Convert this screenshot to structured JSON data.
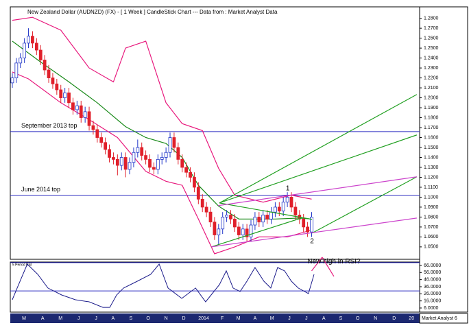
{
  "footer": "Market Analyst 6",
  "chart_data": [
    {
      "type": "candlestick",
      "title": "New Zealand Dollar (AUDNZD) (FX) -  [ 1 Week ]  CandleStick Chart --- Data from : Market Analyst Data",
      "x": [
        0,
        1,
        2,
        3,
        4,
        5,
        6,
        7,
        8,
        9,
        10,
        11,
        12,
        13,
        14,
        15,
        16,
        17,
        18,
        19,
        20,
        21,
        22,
        23,
        24,
        25,
        26,
        27,
        28,
        29,
        30,
        31,
        32,
        33,
        34,
        35,
        36,
        37,
        38,
        39,
        40,
        41,
        42,
        43,
        44,
        45,
        46,
        47,
        48,
        49,
        50,
        51,
        52,
        53,
        54,
        55,
        56,
        57,
        58,
        59,
        60,
        61,
        62,
        63,
        64,
        65,
        66,
        67,
        68,
        69,
        70,
        71,
        72,
        73,
        74
      ],
      "open": [
        1.215,
        1.22,
        1.235,
        1.24,
        1.255,
        1.262,
        1.255,
        1.248,
        1.238,
        1.228,
        1.22,
        1.214,
        1.208,
        1.2,
        1.205,
        1.195,
        1.188,
        1.192,
        1.18,
        1.186,
        1.172,
        1.168,
        1.16,
        1.155,
        1.148,
        1.14,
        1.138,
        1.132,
        1.14,
        1.128,
        1.135,
        1.145,
        1.15,
        1.142,
        1.138,
        1.13,
        1.128,
        1.138,
        1.14,
        1.145,
        1.16,
        1.15,
        1.138,
        1.13,
        1.125,
        1.12,
        1.11,
        1.098,
        1.09,
        1.085,
        1.075,
        1.062,
        1.068,
        1.08,
        1.082,
        1.078,
        1.07,
        1.062,
        1.068,
        1.06,
        1.072,
        1.08,
        1.075,
        1.082,
        1.078,
        1.085,
        1.09,
        1.086,
        1.095,
        1.1,
        1.09,
        1.082,
        1.078,
        1.07,
        1.065
      ],
      "high": [
        1.225,
        1.24,
        1.245,
        1.26,
        1.27,
        1.267,
        1.26,
        1.253,
        1.243,
        1.233,
        1.225,
        1.219,
        1.213,
        1.21,
        1.21,
        1.2,
        1.197,
        1.197,
        1.191,
        1.191,
        1.177,
        1.173,
        1.165,
        1.16,
        1.153,
        1.145,
        1.143,
        1.145,
        1.145,
        1.14,
        1.15,
        1.158,
        1.155,
        1.147,
        1.143,
        1.135,
        1.143,
        1.145,
        1.15,
        1.165,
        1.165,
        1.155,
        1.143,
        1.135,
        1.13,
        1.125,
        1.115,
        1.103,
        1.095,
        1.09,
        1.08,
        1.073,
        1.085,
        1.087,
        1.087,
        1.083,
        1.075,
        1.073,
        1.073,
        1.077,
        1.085,
        1.085,
        1.087,
        1.087,
        1.09,
        1.095,
        1.095,
        1.1,
        1.105,
        1.105,
        1.095,
        1.087,
        1.083,
        1.075,
        1.085
      ],
      "low": [
        1.21,
        1.215,
        1.23,
        1.235,
        1.25,
        1.25,
        1.243,
        1.233,
        1.223,
        1.215,
        1.209,
        1.203,
        1.195,
        1.195,
        1.19,
        1.183,
        1.183,
        1.175,
        1.175,
        1.167,
        1.163,
        1.155,
        1.15,
        1.143,
        1.135,
        1.133,
        1.122,
        1.127,
        1.12,
        1.123,
        1.13,
        1.14,
        1.137,
        1.133,
        1.125,
        1.123,
        1.123,
        1.133,
        1.135,
        1.14,
        1.145,
        1.133,
        1.125,
        1.12,
        1.115,
        1.105,
        1.093,
        1.085,
        1.08,
        1.07,
        1.057,
        1.052,
        1.063,
        1.075,
        1.073,
        1.065,
        1.057,
        1.057,
        1.055,
        1.055,
        1.067,
        1.07,
        1.07,
        1.073,
        1.073,
        1.08,
        1.081,
        1.081,
        1.09,
        1.085,
        1.077,
        1.073,
        1.065,
        1.06,
        1.06
      ],
      "close": [
        1.22,
        1.235,
        1.24,
        1.255,
        1.262,
        1.255,
        1.248,
        1.238,
        1.228,
        1.22,
        1.214,
        1.208,
        1.2,
        1.205,
        1.195,
        1.188,
        1.192,
        1.18,
        1.186,
        1.172,
        1.168,
        1.16,
        1.155,
        1.148,
        1.14,
        1.138,
        1.132,
        1.14,
        1.128,
        1.135,
        1.145,
        1.15,
        1.142,
        1.138,
        1.13,
        1.128,
        1.138,
        1.14,
        1.145,
        1.16,
        1.15,
        1.138,
        1.13,
        1.125,
        1.12,
        1.11,
        1.098,
        1.09,
        1.085,
        1.075,
        1.062,
        1.068,
        1.08,
        1.082,
        1.078,
        1.07,
        1.062,
        1.068,
        1.06,
        1.072,
        1.08,
        1.075,
        1.082,
        1.078,
        1.085,
        1.09,
        1.086,
        1.095,
        1.1,
        1.09,
        1.082,
        1.078,
        1.07,
        1.065,
        1.08
      ],
      "up_color": "#1f35c8",
      "down_color": "#e0202a",
      "overlays": [
        {
          "x": [
            0,
            5,
            12,
            19,
            25,
            28,
            33,
            38,
            42,
            47,
            51,
            55,
            62,
            69,
            74
          ],
          "values": [
            1.278,
            1.281,
            1.268,
            1.23,
            1.216,
            1.25,
            1.257,
            1.195,
            1.174,
            1.167,
            1.129,
            1.102,
            1.095,
            1.102,
            1.098
          ],
          "color": "#e8197d"
        },
        {
          "x": [
            0,
            4,
            12,
            19,
            26,
            33,
            38,
            42,
            46,
            50,
            55,
            61,
            68,
            74
          ],
          "values": [
            1.226,
            1.219,
            1.195,
            1.178,
            1.16,
            1.126,
            1.116,
            1.112,
            1.078,
            1.043,
            1.05,
            1.06,
            1.06,
            1.067
          ],
          "color": "#e8197d"
        },
        {
          "x": [
            0,
            7,
            14,
            21,
            28,
            33,
            38,
            42,
            46,
            51,
            56,
            65,
            71,
            74
          ],
          "values": [
            1.257,
            1.236,
            1.216,
            1.195,
            1.171,
            1.16,
            1.154,
            1.14,
            1.112,
            1.091,
            1.078,
            1.078,
            1.079,
            1.078
          ],
          "color": "#1a8a1a"
        }
      ],
      "levels": [
        {
          "value": 1.166,
          "label": "September 2013 top"
        },
        {
          "value": 1.102,
          "label": "June 2014 top"
        }
      ],
      "level_color": "#2b2bc0",
      "trendlines": [
        {
          "x": [
            51.2,
            100.0
          ],
          "y": [
            1.0942,
            1.2033
          ],
          "color": "#22a022"
        },
        {
          "x": [
            51.2,
            100.0
          ],
          "y": [
            1.0942,
            1.1626
          ],
          "color": "#22a022"
        },
        {
          "x": [
            74.1,
            100.0
          ],
          "y": [
            1.0638,
            1.1205
          ],
          "color": "#22a022"
        },
        {
          "x": [
            51.2,
            74.1
          ],
          "y": [
            1.0942,
            1.0777
          ],
          "color": "#22a022"
        },
        {
          "x": [
            49.2,
            71.5
          ],
          "y": [
            1.05,
            1.079
          ],
          "color": "#22a022"
        },
        {
          "x": [
            50.9,
            100.0
          ],
          "y": [
            1.0915,
            1.1205
          ],
          "color": "#cc44cc"
        },
        {
          "x": [
            49.2,
            100.0
          ],
          "y": [
            1.05,
            1.079
          ],
          "color": "#cc44cc"
        }
      ],
      "annotations": [
        {
          "text": "1",
          "x": 68.1,
          "y": 1.1087
        },
        {
          "text": "2",
          "x": 74.1,
          "y": 1.0556
        }
      ],
      "xlim": [
        -0.5,
        100.7
      ],
      "ylim": [
        1.0375,
        1.2915
      ],
      "yticks": [
        {
          "value": 1.28,
          "label": "1.2800"
        },
        {
          "value": 1.27,
          "label": "1.2700"
        },
        {
          "value": 1.26,
          "label": "1.2600"
        },
        {
          "value": 1.25,
          "label": "1.2500"
        },
        {
          "value": 1.24,
          "label": "1.2400"
        },
        {
          "value": 1.23,
          "label": "1.2300"
        },
        {
          "value": 1.22,
          "label": "1.2200"
        },
        {
          "value": 1.21,
          "label": "1.2100"
        },
        {
          "value": 1.2,
          "label": "1.2000"
        },
        {
          "value": 1.19,
          "label": "1.1900"
        },
        {
          "value": 1.18,
          "label": "1.1800"
        },
        {
          "value": 1.17,
          "label": "1.1700"
        },
        {
          "value": 1.16,
          "label": "1.1600"
        },
        {
          "value": 1.15,
          "label": "1.1500"
        },
        {
          "value": 1.14,
          "label": "1.1400"
        },
        {
          "value": 1.13,
          "label": "1.1300"
        },
        {
          "value": 1.12,
          "label": "1.1200"
        },
        {
          "value": 1.11,
          "label": "1.1100"
        },
        {
          "value": 1.1,
          "label": "1.1000"
        },
        {
          "value": 1.09,
          "label": "1.0900"
        },
        {
          "value": 1.08,
          "label": "1.0800"
        },
        {
          "value": 1.07,
          "label": "1.0700"
        },
        {
          "value": 1.06,
          "label": "1.0600"
        },
        {
          "value": 1.05,
          "label": "1.0500"
        }
      ]
    },
    {
      "type": "line",
      "title": "5 Period RSI",
      "x": [
        0,
        1.2,
        3.7,
        6.3,
        8.8,
        12.2,
        15.6,
        19.0,
        22.4,
        24.1,
        25.8,
        27.5,
        30.9,
        34.2,
        36.3,
        38.5,
        41.9,
        45.3,
        47.8,
        51.2,
        52.9,
        54.6,
        56.3,
        58.0,
        60.0,
        62.2,
        63.9,
        65.6,
        67.3,
        69.0,
        70.7,
        73.2,
        74.6
      ],
      "values": [
        17.6,
        34.1,
        67.9,
        53.4,
        34.1,
        24.4,
        17.6,
        14.7,
        6.9,
        6.9,
        24.4,
        34.1,
        43.7,
        53.4,
        67.9,
        34.1,
        19.5,
        34.1,
        14.7,
        38.9,
        58.3,
        34.1,
        29.2,
        43.7,
        63.1,
        43.7,
        34.1,
        63.1,
        58.3,
        43.7,
        34.1,
        26.3,
        53.4
      ],
      "color": "#1a1a8a",
      "levels": [
        70,
        30
      ],
      "level_color": "#2b2bc0",
      "trendlines": [
        {
          "x": [
            74.0,
            76.6
          ],
          "y": [
            58.3,
            77.6
          ],
          "color": "#e8197d"
        },
        {
          "x": [
            76.6,
            79.5
          ],
          "y": [
            77.6,
            50.5
          ],
          "color": "#e8197d"
        }
      ],
      "annotations": [
        {
          "text": "New high in RSI?",
          "x": 79.5,
          "y": 71.5
        }
      ],
      "xlim": [
        -0.5,
        100.7
      ],
      "ylim": [
        0.2,
        70.8
      ],
      "yticks": [
        {
          "value": 66,
          "label": "66.0000"
        },
        {
          "value": 56,
          "label": "56.0000"
        },
        {
          "value": 46,
          "label": "46.0000"
        },
        {
          "value": 36,
          "label": "36.0000"
        },
        {
          "value": 26,
          "label": "26.0000"
        },
        {
          "value": 16,
          "label": "16.0000"
        },
        {
          "value": 6,
          "label": "6.0000"
        }
      ],
      "xticks": [
        {
          "value": 2.9,
          "label": "M"
        },
        {
          "value": 7.5,
          "label": "A"
        },
        {
          "value": 11.9,
          "label": "M"
        },
        {
          "value": 16.4,
          "label": "J"
        },
        {
          "value": 20.7,
          "label": "J"
        },
        {
          "value": 24.9,
          "label": "A"
        },
        {
          "value": 29.3,
          "label": "S"
        },
        {
          "value": 33.6,
          "label": "O"
        },
        {
          "value": 38.0,
          "label": "N"
        },
        {
          "value": 42.4,
          "label": "D"
        },
        {
          "value": 47.3,
          "label": "2014"
        },
        {
          "value": 51.9,
          "label": "F"
        },
        {
          "value": 55.9,
          "label": "M"
        },
        {
          "value": 60.0,
          "label": "A"
        },
        {
          "value": 64.2,
          "label": "M"
        },
        {
          "value": 68.5,
          "label": "J"
        },
        {
          "value": 72.7,
          "label": "J"
        },
        {
          "value": 77.0,
          "label": "A"
        },
        {
          "value": 81.2,
          "label": "S"
        },
        {
          "value": 85.4,
          "label": "O"
        },
        {
          "value": 89.8,
          "label": "N"
        },
        {
          "value": 94.4,
          "label": "D"
        },
        {
          "value": 98.7,
          "label": "20"
        }
      ]
    }
  ]
}
